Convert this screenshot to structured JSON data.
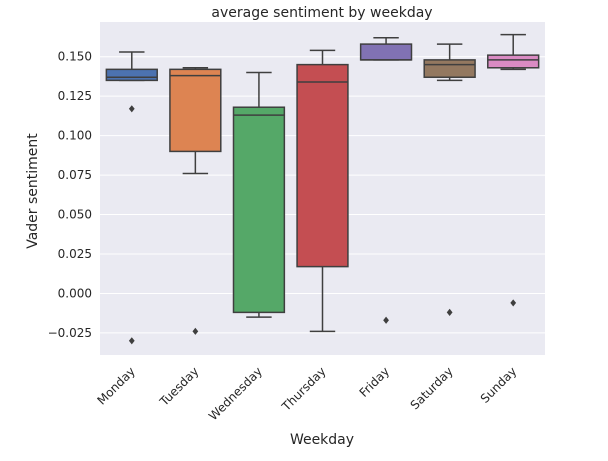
{
  "chart_data": {
    "type": "box",
    "title": "average sentiment by weekday",
    "xlabel": "Weekday",
    "ylabel": "Vader sentiment",
    "ylim": [
      -0.039,
      0.172
    ],
    "yticks": [
      -0.025,
      0.0,
      0.025,
      0.05,
      0.075,
      0.1,
      0.125,
      0.15
    ],
    "ytick_labels": [
      "−0.025",
      "0.000",
      "0.025",
      "0.050",
      "0.075",
      "0.100",
      "0.125",
      "0.150"
    ],
    "grid": true,
    "background": "#eaeaf2",
    "categories": [
      "Monday",
      "Tuesday",
      "Wednesday",
      "Thursday",
      "Friday",
      "Saturday",
      "Sunday"
    ],
    "boxes": [
      {
        "category": "Monday",
        "whisker_low": 0.135,
        "q1": 0.135,
        "median": 0.137,
        "q3": 0.142,
        "whisker_high": 0.153,
        "outliers": [
          0.117,
          -0.03
        ],
        "color": "#4c72b0"
      },
      {
        "category": "Tuesday",
        "whisker_low": 0.076,
        "q1": 0.09,
        "median": 0.138,
        "q3": 0.142,
        "whisker_high": 0.143,
        "outliers": [
          -0.024
        ],
        "color": "#dd8452"
      },
      {
        "category": "Wednesday",
        "whisker_low": -0.015,
        "q1": -0.012,
        "median": 0.113,
        "q3": 0.118,
        "whisker_high": 0.14,
        "outliers": [],
        "color": "#55a868"
      },
      {
        "category": "Thursday",
        "whisker_low": -0.024,
        "q1": 0.017,
        "median": 0.134,
        "q3": 0.145,
        "whisker_high": 0.154,
        "outliers": [],
        "color": "#c44e52"
      },
      {
        "category": "Friday",
        "whisker_low": 0.148,
        "q1": 0.148,
        "median": 0.148,
        "q3": 0.158,
        "whisker_high": 0.162,
        "outliers": [
          -0.017
        ],
        "color": "#8172b3"
      },
      {
        "category": "Saturday",
        "whisker_low": 0.135,
        "q1": 0.137,
        "median": 0.145,
        "q3": 0.148,
        "whisker_high": 0.158,
        "outliers": [
          -0.012
        ],
        "color": "#937860"
      },
      {
        "category": "Sunday",
        "whisker_low": 0.142,
        "q1": 0.143,
        "median": 0.148,
        "q3": 0.151,
        "whisker_high": 0.164,
        "outliers": [
          -0.006
        ],
        "color": "#da8bc3"
      }
    ]
  }
}
